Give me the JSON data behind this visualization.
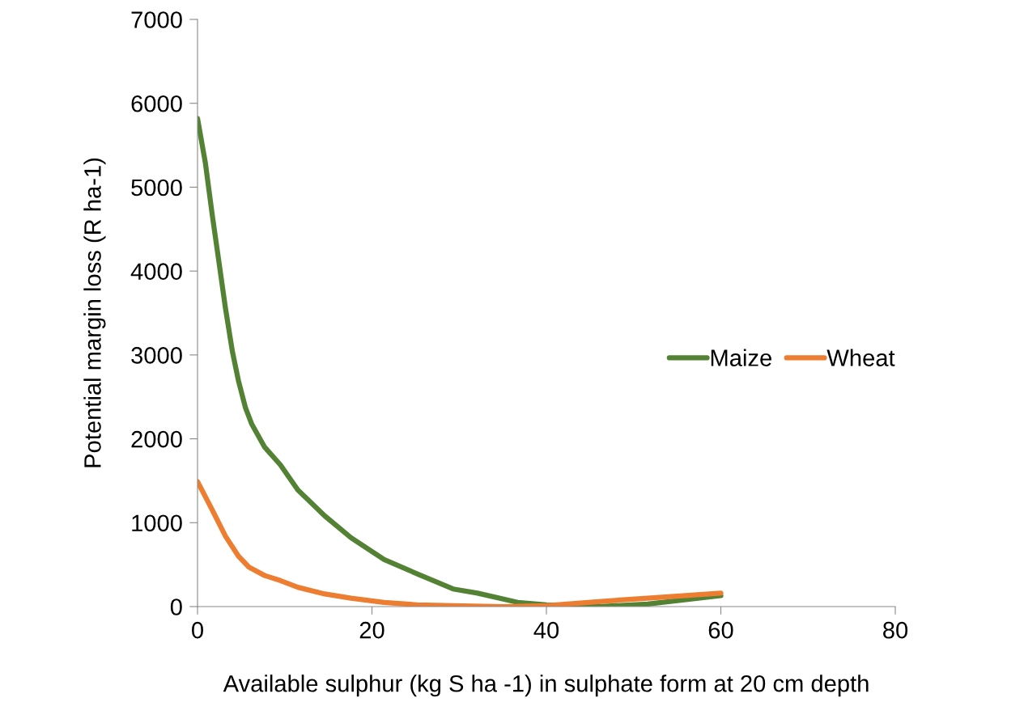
{
  "chart_data": {
    "type": "line",
    "xlabel": "Available sulphur (kg S ha -1) in sulphate form at 20 cm depth",
    "ylabel": "Potential margin loss (R ha-1)",
    "xlim": [
      0,
      80
    ],
    "xticks": [
      0,
      20,
      40,
      60,
      80
    ],
    "ylim": [
      0,
      7000
    ],
    "yticks": [
      0,
      1000,
      2000,
      3000,
      4000,
      5000,
      6000,
      7000
    ],
    "grid": false,
    "legend": "right",
    "marker": "none",
    "line_style": "solid",
    "series": [
      {
        "name": "Maize",
        "color": "#548235",
        "x": [
          0,
          0.9,
          1.7,
          2.4,
          3.2,
          4.0,
          4.7,
          5.5,
          6.2,
          7.7,
          9.5,
          11.5,
          14.6,
          17.6,
          21.4,
          25.2,
          29.3,
          32.1,
          36.7,
          40,
          46,
          51.6,
          60
        ],
        "values": [
          5820,
          5290,
          4660,
          4150,
          3560,
          3040,
          2690,
          2370,
          2180,
          1900,
          1690,
          1390,
          1080,
          820,
          560,
          390,
          210,
          160,
          50,
          20,
          0,
          30,
          130
        ]
      },
      {
        "name": "Wheat",
        "color": "#ed7d31",
        "x": [
          0,
          1.7,
          3.2,
          4.7,
          5.9,
          7.7,
          9.5,
          11.5,
          14.6,
          17.6,
          21.4,
          25.2,
          29.3,
          35,
          40,
          46,
          51.6,
          60
        ],
        "values": [
          1490,
          1150,
          840,
          600,
          470,
          370,
          310,
          230,
          150,
          100,
          50,
          20,
          10,
          0,
          10,
          60,
          100,
          160
        ]
      }
    ]
  }
}
